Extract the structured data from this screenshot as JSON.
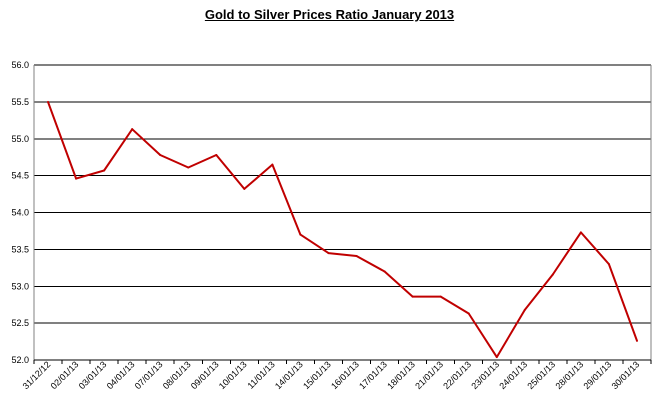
{
  "chart_data": {
    "type": "line",
    "title": "Gold to Silver Prices Ratio January 2013",
    "xlabel": "",
    "ylabel": "",
    "ylim": [
      52.0,
      56.0
    ],
    "yticks": [
      "56.0",
      "55.5",
      "55.0",
      "54.5",
      "54.0",
      "53.5",
      "53.0",
      "52.5",
      "52.0"
    ],
    "grid": "horizontal",
    "legend": "none",
    "categories": [
      "31/12/12",
      "02/01/13",
      "03/01/13",
      "04/01/13",
      "07/01/13",
      "08/01/13",
      "09/01/13",
      "10/01/13",
      "11/01/13",
      "14/01/13",
      "15/01/13",
      "16/01/13",
      "17/01/13",
      "18/01/13",
      "21/01/13",
      "22/01/13",
      "23/01/13",
      "24/01/13",
      "25/01/13",
      "28/01/13",
      "29/01/13",
      "30/01/13"
    ],
    "series": [
      {
        "values": [
          55.5,
          54.46,
          54.57,
          55.13,
          54.78,
          54.61,
          54.78,
          54.32,
          54.65,
          53.7,
          53.45,
          53.41,
          53.2,
          52.86,
          52.86,
          52.63,
          52.04,
          52.68,
          53.16,
          53.73,
          53.3,
          52.26
        ],
        "color": "#c00000"
      }
    ]
  }
}
